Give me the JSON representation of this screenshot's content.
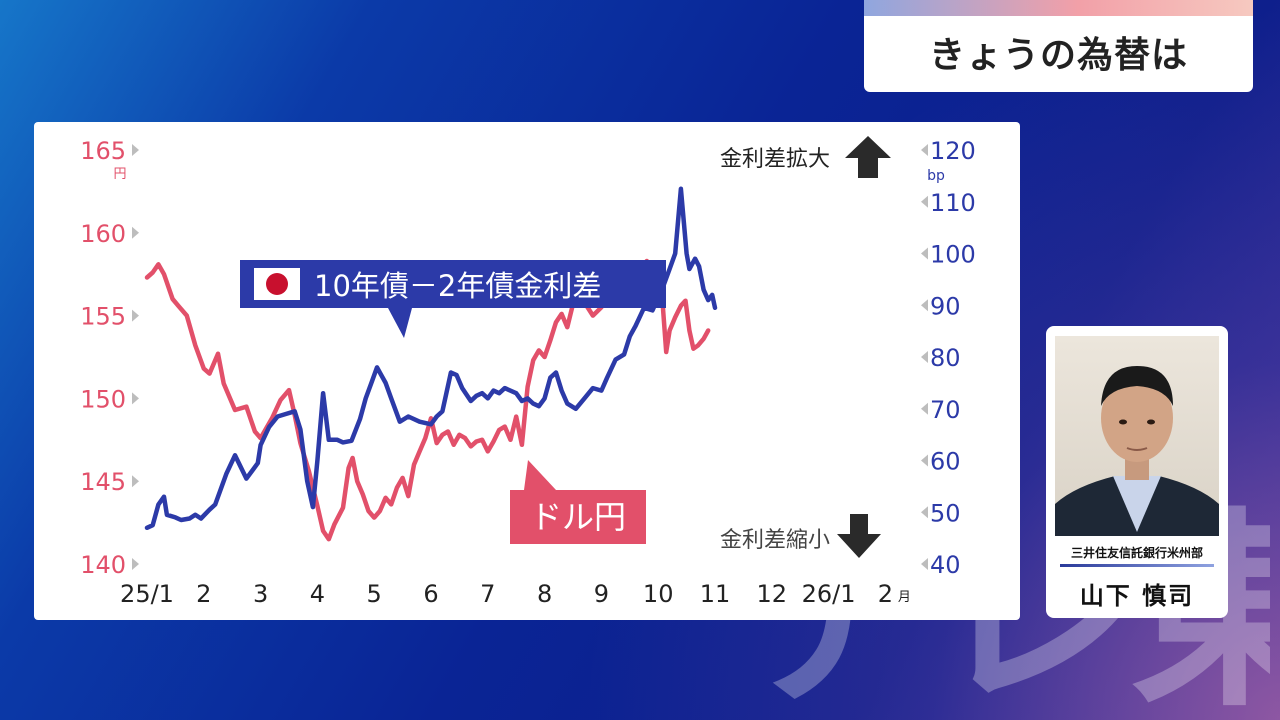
{
  "title": "きょうの為替は",
  "watermark": "テレ東",
  "colors": {
    "usdjpy": "#e2506a",
    "spread": "#2c3aa8",
    "label_usdjpy_bg": "#e2506a",
    "label_spread_bg": "#2c3aa8"
  },
  "profile": {
    "affiliation": "三井住友信託銀行米州部",
    "name": "山下 慎司"
  },
  "chart_data": {
    "type": "line",
    "x_ticks": [
      "25/1",
      "2",
      "3",
      "4",
      "5",
      "6",
      "7",
      "8",
      "9",
      "10",
      "11",
      "12",
      "26/1",
      "2"
    ],
    "x_unit": "月",
    "y_left": {
      "unit": "円",
      "ticks": [
        140,
        145,
        150,
        155,
        160,
        165
      ],
      "lim": [
        140,
        165
      ]
    },
    "y_right": {
      "unit": "bp",
      "ticks": [
        40,
        50,
        60,
        70,
        80,
        90,
        100,
        110,
        120
      ],
      "lim": [
        40,
        120
      ]
    },
    "grid": false,
    "annotations": {
      "widening": "金利差拡大",
      "narrowing": "金利差縮小"
    },
    "series": [
      {
        "name": "ドル円",
        "axis": "left",
        "values": [
          [
            0.0,
            157.3
          ],
          [
            0.1,
            157.6
          ],
          [
            0.2,
            158.1
          ],
          [
            0.3,
            157.5
          ],
          [
            0.45,
            156.0
          ],
          [
            0.55,
            155.6
          ],
          [
            0.7,
            155.0
          ],
          [
            0.85,
            153.2
          ],
          [
            1.0,
            151.8
          ],
          [
            1.1,
            151.5
          ],
          [
            1.25,
            152.7
          ],
          [
            1.35,
            150.9
          ],
          [
            1.55,
            149.3
          ],
          [
            1.75,
            149.5
          ],
          [
            1.9,
            148.0
          ],
          [
            2.0,
            147.6
          ],
          [
            2.2,
            148.8
          ],
          [
            2.35,
            149.9
          ],
          [
            2.5,
            150.5
          ],
          [
            2.6,
            149.0
          ],
          [
            2.7,
            147.3
          ],
          [
            2.85,
            145.6
          ],
          [
            3.0,
            143.5
          ],
          [
            3.1,
            142.0
          ],
          [
            3.2,
            141.5
          ],
          [
            3.3,
            142.4
          ],
          [
            3.45,
            143.4
          ],
          [
            3.55,
            145.8
          ],
          [
            3.62,
            146.4
          ],
          [
            3.7,
            145.0
          ],
          [
            3.8,
            144.2
          ],
          [
            3.9,
            143.2
          ],
          [
            4.0,
            142.8
          ],
          [
            4.1,
            143.2
          ],
          [
            4.2,
            144.0
          ],
          [
            4.3,
            143.6
          ],
          [
            4.4,
            144.6
          ],
          [
            4.5,
            145.2
          ],
          [
            4.6,
            144.1
          ],
          [
            4.7,
            146.0
          ],
          [
            4.8,
            146.8
          ],
          [
            4.9,
            147.6
          ],
          [
            5.0,
            148.8
          ],
          [
            5.1,
            147.3
          ],
          [
            5.2,
            147.8
          ],
          [
            5.3,
            148.0
          ],
          [
            5.4,
            147.2
          ],
          [
            5.5,
            147.8
          ],
          [
            5.6,
            147.6
          ],
          [
            5.7,
            147.1
          ],
          [
            5.8,
            147.4
          ],
          [
            5.9,
            147.5
          ],
          [
            6.0,
            146.8
          ],
          [
            6.1,
            147.4
          ],
          [
            6.2,
            148.1
          ],
          [
            6.3,
            148.3
          ],
          [
            6.4,
            147.5
          ],
          [
            6.5,
            148.9
          ],
          [
            6.6,
            147.2
          ],
          [
            6.7,
            150.7
          ],
          [
            6.8,
            152.3
          ],
          [
            6.9,
            152.9
          ],
          [
            7.0,
            152.5
          ],
          [
            7.1,
            153.5
          ],
          [
            7.2,
            154.6
          ],
          [
            7.3,
            155.1
          ],
          [
            7.4,
            154.3
          ],
          [
            7.5,
            155.7
          ],
          [
            7.6,
            156.3
          ],
          [
            7.7,
            155.8
          ],
          [
            7.85,
            155.0
          ],
          [
            8.0,
            155.5
          ],
          [
            8.1,
            156.1
          ],
          [
            8.2,
            156.7
          ],
          [
            8.3,
            155.8
          ],
          [
            8.4,
            156.9
          ],
          [
            8.5,
            158.1
          ],
          [
            8.6,
            157.3
          ],
          [
            8.7,
            157.9
          ],
          [
            8.8,
            158.3
          ],
          [
            8.9,
            156.9
          ],
          [
            9.0,
            158.2
          ],
          [
            9.07,
            156.1
          ],
          [
            9.14,
            152.8
          ],
          [
            9.2,
            154.1
          ],
          [
            9.3,
            154.9
          ],
          [
            9.4,
            155.6
          ],
          [
            9.48,
            155.9
          ],
          [
            9.55,
            154.1
          ],
          [
            9.62,
            153.0
          ],
          [
            9.7,
            153.2
          ],
          [
            9.8,
            153.6
          ],
          [
            9.88,
            154.1
          ]
        ]
      },
      {
        "name": "10年債－2年債金利差",
        "axis": "right",
        "values": [
          [
            0.0,
            47.0
          ],
          [
            0.1,
            47.5
          ],
          [
            0.2,
            51.5
          ],
          [
            0.3,
            53.0
          ],
          [
            0.35,
            49.5
          ],
          [
            0.5,
            49.0
          ],
          [
            0.6,
            48.5
          ],
          [
            0.75,
            48.8
          ],
          [
            0.85,
            49.5
          ],
          [
            0.95,
            48.8
          ],
          [
            1.1,
            50.5
          ],
          [
            1.2,
            51.5
          ],
          [
            1.4,
            57.5
          ],
          [
            1.55,
            61.0
          ],
          [
            1.75,
            56.5
          ],
          [
            1.95,
            59.5
          ],
          [
            2.0,
            63.0
          ],
          [
            2.15,
            66.5
          ],
          [
            2.3,
            68.5
          ],
          [
            2.45,
            69.0
          ],
          [
            2.6,
            69.5
          ],
          [
            2.7,
            66.0
          ],
          [
            2.82,
            56.0
          ],
          [
            2.92,
            51.0
          ],
          [
            3.0,
            60.0
          ],
          [
            3.1,
            73.0
          ],
          [
            3.2,
            64.0
          ],
          [
            3.35,
            64.0
          ],
          [
            3.45,
            63.5
          ],
          [
            3.6,
            63.8
          ],
          [
            3.75,
            68.0
          ],
          [
            3.85,
            72.0
          ],
          [
            3.95,
            75.0
          ],
          [
            4.05,
            78.0
          ],
          [
            4.2,
            75.0
          ],
          [
            4.3,
            72.0
          ],
          [
            4.45,
            67.5
          ],
          [
            4.6,
            68.5
          ],
          [
            4.8,
            67.5
          ],
          [
            5.0,
            67.0
          ],
          [
            5.1,
            68.5
          ],
          [
            5.2,
            69.5
          ],
          [
            5.35,
            77.0
          ],
          [
            5.45,
            76.5
          ],
          [
            5.55,
            74.0
          ],
          [
            5.7,
            71.5
          ],
          [
            5.8,
            72.5
          ],
          [
            5.9,
            73.0
          ],
          [
            6.0,
            72.0
          ],
          [
            6.1,
            73.5
          ],
          [
            6.2,
            73.0
          ],
          [
            6.3,
            74.0
          ],
          [
            6.5,
            73.0
          ],
          [
            6.6,
            71.5
          ],
          [
            6.7,
            72.0
          ],
          [
            6.8,
            71.0
          ],
          [
            6.9,
            70.5
          ],
          [
            7.0,
            72.0
          ],
          [
            7.1,
            76.0
          ],
          [
            7.2,
            77.0
          ],
          [
            7.3,
            73.5
          ],
          [
            7.4,
            71.0
          ],
          [
            7.55,
            70.0
          ],
          [
            7.7,
            72.0
          ],
          [
            7.85,
            74.0
          ],
          [
            8.0,
            73.5
          ],
          [
            8.1,
            76.0
          ],
          [
            8.25,
            79.5
          ],
          [
            8.4,
            80.5
          ],
          [
            8.5,
            84.0
          ],
          [
            8.6,
            86.0
          ],
          [
            8.75,
            89.5
          ],
          [
            8.9,
            89.0
          ],
          [
            9.0,
            91.5
          ],
          [
            9.1,
            94.0
          ],
          [
            9.2,
            97.0
          ],
          [
            9.3,
            100.0
          ],
          [
            9.4,
            112.5
          ],
          [
            9.5,
            100.0
          ],
          [
            9.55,
            97.0
          ],
          [
            9.65,
            99.0
          ],
          [
            9.72,
            97.5
          ],
          [
            9.8,
            93.0
          ],
          [
            9.88,
            91.0
          ],
          [
            9.95,
            92.0
          ],
          [
            10.0,
            89.5
          ]
        ]
      }
    ]
  }
}
